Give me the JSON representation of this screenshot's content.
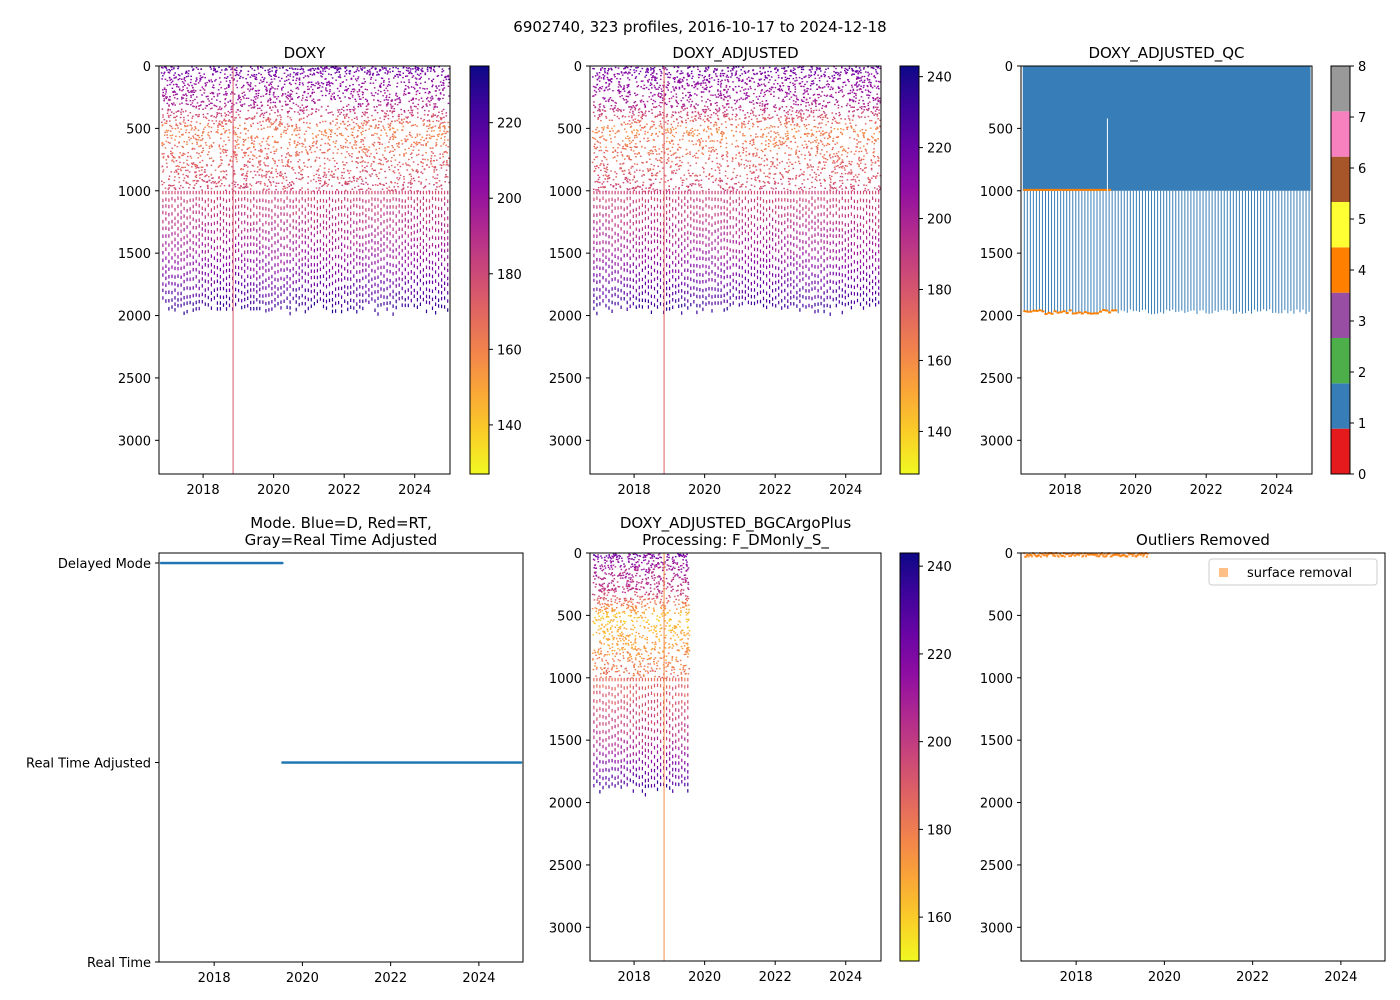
{
  "figure": {
    "suptitle": "6902740, 323 profiles, 2016-10-17 to 2024-12-18"
  },
  "chart_data": [
    {
      "id": "doxy",
      "type": "heatmap",
      "title": "DOXY",
      "xlim": [
        2016.75,
        2025.0
      ],
      "ylim": [
        3270,
        0
      ],
      "x_ticks": [
        2018,
        2020,
        2022,
        2024
      ],
      "x_tick_labels": [
        "2018",
        "2020",
        "2022",
        "2024"
      ],
      "y_ticks": [
        0,
        500,
        1000,
        1500,
        2000,
        2500,
        3000
      ],
      "y_tick_labels": [
        "0",
        "500",
        "1000",
        "1500",
        "2000",
        "2500",
        "3000"
      ],
      "time_range": [
        2016.8,
        2024.96
      ],
      "max_depth_typical": 1980,
      "deep_profile": {
        "x": 2018.85,
        "depth": 3270
      },
      "colorbar": {
        "cmap": "plasma_r",
        "range": [
          127,
          235
        ],
        "ticks": [
          140,
          160,
          180,
          200,
          220
        ],
        "tick_labels": [
          "140",
          "160",
          "180",
          "200",
          "220"
        ]
      },
      "depth_value_profile": [
        {
          "depth": 0,
          "value": 215
        },
        {
          "depth": 100,
          "value": 205
        },
        {
          "depth": 300,
          "value": 195
        },
        {
          "depth": 500,
          "value": 160
        },
        {
          "depth": 700,
          "value": 168
        },
        {
          "depth": 1000,
          "value": 180
        },
        {
          "depth": 1500,
          "value": 200
        },
        {
          "depth": 2000,
          "value": 230
        }
      ]
    },
    {
      "id": "doxy_adjusted",
      "type": "heatmap",
      "title": "DOXY_ADJUSTED",
      "xlim": [
        2016.75,
        2025.0
      ],
      "ylim": [
        3270,
        0
      ],
      "x_ticks": [
        2018,
        2020,
        2022,
        2024
      ],
      "x_tick_labels": [
        "2018",
        "2020",
        "2022",
        "2024"
      ],
      "y_ticks": [
        0,
        500,
        1000,
        1500,
        2000,
        2500,
        3000
      ],
      "y_tick_labels": [
        "0",
        "500",
        "1000",
        "1500",
        "2000",
        "2500",
        "3000"
      ],
      "time_range": [
        2016.8,
        2024.96
      ],
      "max_depth_typical": 1980,
      "deep_profile": {
        "x": 2018.85,
        "depth": 3270
      },
      "colorbar": {
        "cmap": "plasma_r",
        "range": [
          128,
          243
        ],
        "ticks": [
          140,
          160,
          180,
          200,
          220,
          240
        ],
        "tick_labels": [
          "140",
          "160",
          "180",
          "200",
          "220",
          "240"
        ]
      },
      "depth_value_profile": [
        {
          "depth": 0,
          "value": 220
        },
        {
          "depth": 100,
          "value": 210
        },
        {
          "depth": 300,
          "value": 200
        },
        {
          "depth": 500,
          "value": 162
        },
        {
          "depth": 700,
          "value": 170
        },
        {
          "depth": 1000,
          "value": 185
        },
        {
          "depth": 1500,
          "value": 205
        },
        {
          "depth": 2000,
          "value": 238
        }
      ]
    },
    {
      "id": "doxy_adjusted_qc",
      "type": "heatmap",
      "title": "DOXY_ADJUSTED_QC",
      "xlim": [
        2016.75,
        2025.0
      ],
      "ylim": [
        3270,
        0
      ],
      "x_ticks": [
        2018,
        2020,
        2022,
        2024
      ],
      "x_tick_labels": [
        "2018",
        "2020",
        "2022",
        "2024"
      ],
      "y_ticks": [
        0,
        500,
        1000,
        1500,
        2000,
        2500,
        3000
      ],
      "y_tick_labels": [
        "0",
        "500",
        "1000",
        "1500",
        "2000",
        "2500",
        "3000"
      ],
      "time_range": [
        2016.8,
        2024.96
      ],
      "block": {
        "depth_top": 0,
        "depth_bottom": 1000,
        "flag": 1
      },
      "line_bottom_flag": 4,
      "qc_colors": [
        "#e41a1c",
        "#377eb8",
        "#4daf4a",
        "#984ea3",
        "#ff7f00",
        "#ffff33",
        "#a65628",
        "#f781bf",
        "#999999"
      ],
      "colorbar": {
        "type": "discrete",
        "range": [
          0,
          8
        ],
        "ticks": [
          0,
          1,
          2,
          3,
          4,
          5,
          6,
          7,
          8
        ],
        "tick_labels": [
          "0",
          "1",
          "2",
          "3",
          "4",
          "5",
          "6",
          "7",
          "8"
        ]
      }
    },
    {
      "id": "mode",
      "type": "scatter",
      "title": "Mode. Blue=D, Red=RT,\nGray=Real Time Adjusted",
      "xlim": [
        2016.75,
        2025.0
      ],
      "x_ticks": [
        2018,
        2020,
        2022,
        2024
      ],
      "x_tick_labels": [
        "2018",
        "2020",
        "2022",
        "2024"
      ],
      "y_categories": [
        "Delayed Mode",
        "Real Time Adjusted",
        "Real Time"
      ],
      "series": [
        {
          "name": "Delayed Mode",
          "x_range": [
            2016.8,
            2019.55
          ],
          "color": "#1f77b4"
        },
        {
          "name": "Real Time Adjusted",
          "x_range": [
            2019.55,
            2024.96
          ],
          "color": "#1f77b4"
        }
      ]
    },
    {
      "id": "bgc_argo_plus",
      "type": "heatmap",
      "title": "DOXY_ADJUSTED_BGCArgoPlus\nProcessing: F_DMonly_S_",
      "xlim": [
        2016.75,
        2025.0
      ],
      "ylim": [
        3270,
        0
      ],
      "x_ticks": [
        2018,
        2020,
        2022,
        2024
      ],
      "x_tick_labels": [
        "2018",
        "2020",
        "2022",
        "2024"
      ],
      "y_ticks": [
        0,
        500,
        1000,
        1500,
        2000,
        2500,
        3000
      ],
      "y_tick_labels": [
        "0",
        "500",
        "1000",
        "1500",
        "2000",
        "2500",
        "3000"
      ],
      "time_range": [
        2016.8,
        2019.55
      ],
      "max_depth_typical": 1930,
      "deep_profile": {
        "x": 2018.85,
        "depth": 3270
      },
      "colorbar": {
        "cmap": "plasma_r",
        "range": [
          150,
          243
        ],
        "ticks": [
          160,
          180,
          200,
          220,
          240
        ],
        "tick_labels": [
          "160",
          "180",
          "200",
          "220",
          "240"
        ]
      },
      "depth_value_profile": [
        {
          "depth": 0,
          "value": 222
        },
        {
          "depth": 100,
          "value": 212
        },
        {
          "depth": 300,
          "value": 200
        },
        {
          "depth": 500,
          "value": 162
        },
        {
          "depth": 700,
          "value": 170
        },
        {
          "depth": 1000,
          "value": 185
        },
        {
          "depth": 1500,
          "value": 205
        },
        {
          "depth": 1930,
          "value": 238
        }
      ]
    },
    {
      "id": "outliers",
      "type": "scatter",
      "title": "Outliers Removed",
      "xlim": [
        2016.75,
        2025.0
      ],
      "ylim": [
        3270,
        0
      ],
      "x_ticks": [
        2018,
        2020,
        2022,
        2024
      ],
      "x_tick_labels": [
        "2018",
        "2020",
        "2022",
        "2024"
      ],
      "y_ticks": [
        0,
        500,
        1000,
        1500,
        2000,
        2500,
        3000
      ],
      "y_tick_labels": [
        "0",
        "500",
        "1000",
        "1500",
        "2000",
        "2500",
        "3000"
      ],
      "legend": {
        "label": "surface removal",
        "placement": "top-right"
      },
      "series": [
        {
          "name": "surface removal",
          "x_range": [
            2016.8,
            2019.6
          ],
          "depth_range": [
            0,
            30
          ],
          "color": "#ff7f0e"
        }
      ]
    }
  ]
}
